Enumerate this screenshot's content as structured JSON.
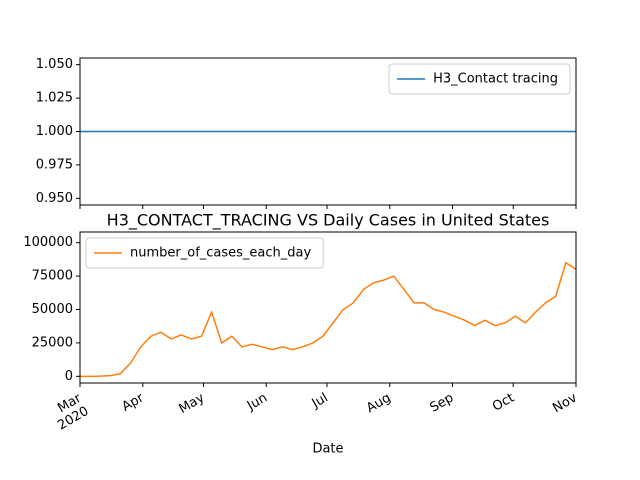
{
  "chart_data": [
    {
      "type": "line",
      "series": [
        {
          "name": "H3_Contact tracing",
          "color": "#1f77b4",
          "values": [
            1,
            1,
            1,
            1,
            1,
            1,
            1,
            1,
            1,
            1,
            1,
            1,
            1,
            1,
            1,
            1,
            1,
            1,
            1,
            1,
            1,
            1,
            1,
            1,
            1,
            1,
            1,
            1,
            1,
            1,
            1,
            1,
            1,
            1,
            1,
            1,
            1,
            1,
            1,
            1,
            1,
            1,
            1,
            1,
            1,
            1,
            1,
            1,
            1,
            1
          ]
        }
      ],
      "xlim": [
        0,
        49
      ],
      "ylim": [
        0.945,
        1.055
      ],
      "yticks": [
        {
          "value": 0.95,
          "label": "0.950"
        },
        0.975,
        {
          "value": 1,
          "label": "1.000"
        },
        1.025,
        {
          "value": 1.05,
          "label": "1.050"
        }
      ],
      "legend": "upper right"
    },
    {
      "type": "line",
      "title": "H3_CONTACT_TRACING VS Daily Cases in United States",
      "xlabel": "Date",
      "series": [
        {
          "name": "number_of_cases_each_day",
          "color": "#ff7f0e",
          "values": [
            0,
            0,
            100,
            500,
            2000,
            10000,
            22000,
            30000,
            33000,
            28000,
            31000,
            28000,
            30000,
            48000,
            25000,
            30000,
            22000,
            24000,
            22000,
            20000,
            22000,
            20000,
            22000,
            25000,
            30000,
            40000,
            50000,
            55000,
            65000,
            70000,
            72000,
            75000,
            65000,
            55000,
            55000,
            50000,
            48000,
            45000,
            42000,
            38000,
            42000,
            38000,
            40000,
            45000,
            40000,
            48000,
            55000,
            60000,
            85000,
            80000
          ]
        }
      ],
      "xlim": [
        0,
        49
      ],
      "xticks": [
        {
          "value": 0,
          "label": "Mar\n2020"
        },
        {
          "value": 6.2,
          "label": "Apr"
        },
        {
          "value": 12.2,
          "label": "May"
        },
        {
          "value": 18.4,
          "label": "Jun"
        },
        {
          "value": 24.4,
          "label": "Jul"
        },
        {
          "value": 30.6,
          "label": "Aug"
        },
        {
          "value": 36.8,
          "label": "Sep"
        },
        {
          "value": 42.8,
          "label": "Oct"
        },
        {
          "value": 49,
          "label": "Nov"
        }
      ],
      "ylim": [
        -5000,
        108000
      ],
      "yticks": [
        0,
        25000,
        50000,
        75000,
        100000
      ],
      "legend": "upper left"
    }
  ]
}
